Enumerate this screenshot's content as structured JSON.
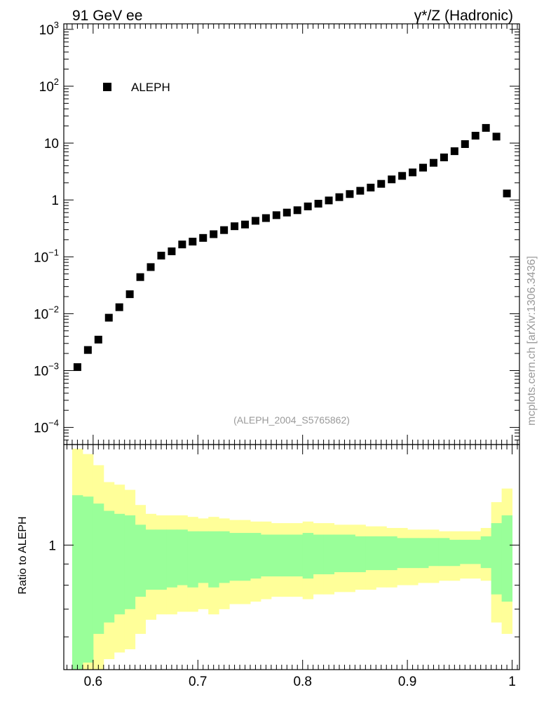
{
  "header": {
    "left_title": "91 GeV ee",
    "right_title": "γ*/Z (Hadronic)"
  },
  "side_label": "mcplots.cern.ch [arXiv:1306.3436]",
  "watermark": "(ALEPH_2004_S5765862)",
  "legend": {
    "entry": "ALEPH",
    "position": "top-left"
  },
  "ratio_ylabel": "Ratio to ALEPH",
  "colors": {
    "markers": "#000000",
    "band_outer": "#ffff99",
    "band_inner": "#99ff99"
  },
  "chart_data": [
    {
      "type": "scatter",
      "title": "",
      "xlabel": "",
      "ylabel": "",
      "ylog": true,
      "xlim": [
        0.572,
        1.007
      ],
      "ylim": [
        5e-05,
        1250
      ],
      "y_ticks": [
        {
          "value": 0.0001,
          "base": "10",
          "exp": "−4"
        },
        {
          "value": 0.001,
          "base": "10",
          "exp": "−3"
        },
        {
          "value": 0.01,
          "base": "10",
          "exp": "−2"
        },
        {
          "value": 0.1,
          "base": "10",
          "exp": "−1"
        },
        {
          "value": 1,
          "base": "1",
          "exp": ""
        },
        {
          "value": 10,
          "base": "10",
          "exp": ""
        },
        {
          "value": 100,
          "base": "10",
          "exp": "2"
        },
        {
          "value": 1000,
          "base": "10",
          "exp": "3"
        }
      ],
      "series": [
        {
          "name": "ALEPH",
          "x": [
            0.585,
            0.595,
            0.605,
            0.615,
            0.625,
            0.635,
            0.645,
            0.655,
            0.665,
            0.675,
            0.685,
            0.695,
            0.705,
            0.715,
            0.725,
            0.735,
            0.745,
            0.755,
            0.765,
            0.775,
            0.785,
            0.795,
            0.805,
            0.815,
            0.825,
            0.835,
            0.845,
            0.855,
            0.865,
            0.875,
            0.885,
            0.895,
            0.905,
            0.915,
            0.925,
            0.935,
            0.945,
            0.955,
            0.965,
            0.975,
            0.985,
            0.995
          ],
          "y": [
            0.00115,
            0.0023,
            0.0035,
            0.0085,
            0.013,
            0.022,
            0.044,
            0.066,
            0.105,
            0.125,
            0.165,
            0.185,
            0.215,
            0.25,
            0.295,
            0.345,
            0.37,
            0.43,
            0.48,
            0.54,
            0.6,
            0.66,
            0.77,
            0.86,
            0.98,
            1.12,
            1.27,
            1.45,
            1.65,
            1.92,
            2.3,
            2.65,
            3.05,
            3.7,
            4.5,
            5.6,
            7.2,
            9.6,
            13.5,
            18.5,
            13,
            1.3
          ]
        }
      ]
    },
    {
      "type": "area",
      "title": "",
      "xlabel": "",
      "ylabel": "Ratio to ALEPH",
      "ylog": true,
      "xlim": [
        0.572,
        1.007
      ],
      "ylim": [
        0.5,
        1.75
      ],
      "y_ticks": [
        {
          "value": 1,
          "label": "1"
        }
      ],
      "x_ticks": [
        {
          "value": 0.6,
          "label": "0.6"
        },
        {
          "value": 0.7,
          "label": "0.7"
        },
        {
          "value": 0.8,
          "label": "0.8"
        },
        {
          "value": 0.9,
          "label": "0.9"
        },
        {
          "value": 1.0,
          "label": "1"
        }
      ],
      "bins": {
        "x_low": [
          0.58,
          0.59,
          0.6,
          0.61,
          0.62,
          0.63,
          0.64,
          0.65,
          0.66,
          0.67,
          0.68,
          0.69,
          0.7,
          0.71,
          0.72,
          0.73,
          0.74,
          0.75,
          0.76,
          0.77,
          0.78,
          0.79,
          0.8,
          0.81,
          0.82,
          0.83,
          0.84,
          0.85,
          0.86,
          0.87,
          0.88,
          0.89,
          0.9,
          0.91,
          0.92,
          0.93,
          0.94,
          0.95,
          0.96,
          0.97,
          0.98,
          0.99
        ],
        "x_high": [
          0.59,
          0.6,
          0.61,
          0.62,
          0.63,
          0.64,
          0.65,
          0.66,
          0.67,
          0.68,
          0.69,
          0.7,
          0.71,
          0.72,
          0.73,
          0.74,
          0.75,
          0.76,
          0.77,
          0.78,
          0.79,
          0.8,
          0.81,
          0.82,
          0.83,
          0.84,
          0.85,
          0.86,
          0.87,
          0.88,
          0.89,
          0.9,
          0.91,
          0.92,
          0.93,
          0.94,
          0.95,
          0.96,
          0.97,
          0.98,
          0.99,
          1.0
        ]
      },
      "series": [
        {
          "name": "",
          "band": "outer",
          "low": [
            0.44,
            0.46,
            0.5,
            0.53,
            0.55,
            0.56,
            0.61,
            0.66,
            0.68,
            0.68,
            0.69,
            0.69,
            0.7,
            0.68,
            0.7,
            0.72,
            0.72,
            0.73,
            0.74,
            0.75,
            0.75,
            0.75,
            0.74,
            0.76,
            0.76,
            0.77,
            0.77,
            0.78,
            0.78,
            0.79,
            0.79,
            0.8,
            0.8,
            0.81,
            0.81,
            0.82,
            0.82,
            0.83,
            0.83,
            0.82,
            0.65,
            0.61
          ],
          "high": [
            1.71,
            1.66,
            1.56,
            1.42,
            1.4,
            1.36,
            1.25,
            1.19,
            1.18,
            1.18,
            1.18,
            1.17,
            1.16,
            1.17,
            1.16,
            1.15,
            1.15,
            1.14,
            1.14,
            1.13,
            1.13,
            1.13,
            1.14,
            1.13,
            1.13,
            1.12,
            1.12,
            1.12,
            1.11,
            1.11,
            1.1,
            1.1,
            1.09,
            1.09,
            1.09,
            1.08,
            1.08,
            1.08,
            1.08,
            1.1,
            1.27,
            1.37
          ]
        },
        {
          "name": "",
          "band": "inner",
          "low": [
            0.48,
            0.52,
            0.61,
            0.65,
            0.68,
            0.7,
            0.75,
            0.78,
            0.78,
            0.79,
            0.8,
            0.79,
            0.81,
            0.79,
            0.81,
            0.82,
            0.82,
            0.83,
            0.84,
            0.84,
            0.84,
            0.84,
            0.83,
            0.85,
            0.85,
            0.86,
            0.86,
            0.86,
            0.87,
            0.87,
            0.87,
            0.88,
            0.88,
            0.88,
            0.89,
            0.89,
            0.89,
            0.9,
            0.9,
            0.88,
            0.76,
            0.73
          ],
          "high": [
            1.32,
            1.31,
            1.26,
            1.21,
            1.19,
            1.18,
            1.12,
            1.09,
            1.09,
            1.09,
            1.09,
            1.08,
            1.08,
            1.08,
            1.08,
            1.07,
            1.07,
            1.07,
            1.06,
            1.06,
            1.06,
            1.06,
            1.07,
            1.06,
            1.06,
            1.06,
            1.06,
            1.05,
            1.05,
            1.05,
            1.05,
            1.04,
            1.04,
            1.04,
            1.04,
            1.04,
            1.03,
            1.03,
            1.03,
            1.05,
            1.13,
            1.18
          ]
        }
      ]
    }
  ]
}
